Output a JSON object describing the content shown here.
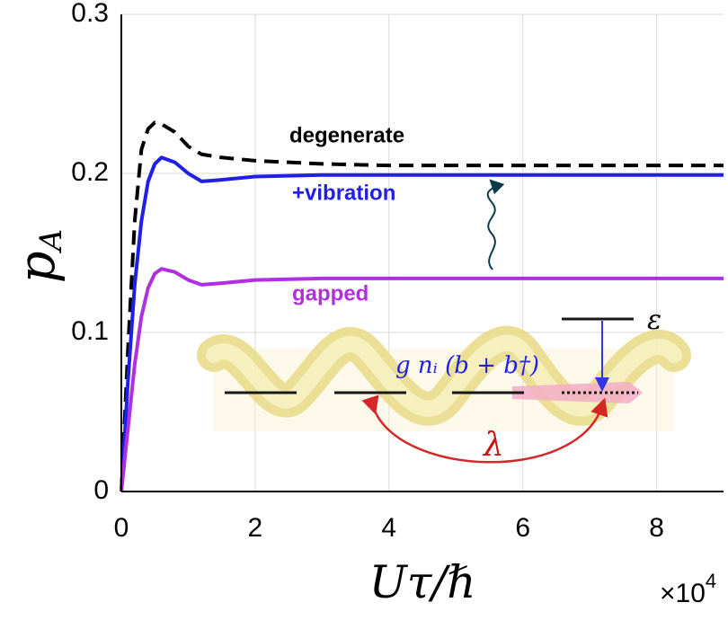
{
  "chart_data": {
    "type": "line",
    "ylabel": [
      "p",
      "A"
    ],
    "xlabel": "Uτ/ℏ",
    "x_multiplier": [
      "×10",
      "4"
    ],
    "x": [
      0,
      0.1,
      0.2,
      0.3,
      0.4,
      0.5,
      0.6,
      0.8,
      1.0,
      1.2,
      1.5,
      2,
      3,
      4,
      6,
      9
    ],
    "series": [
      {
        "name": "degenerate",
        "color": "#000000",
        "dashed": true,
        "values": [
          0,
          0.09,
          0.17,
          0.215,
          0.228,
          0.232,
          0.231,
          0.226,
          0.217,
          0.212,
          0.21,
          0.208,
          0.206,
          0.205,
          0.205,
          0.205
        ]
      },
      {
        "name": "+vibration",
        "color": "#1f1fe6",
        "dashed": false,
        "values": [
          0,
          0.07,
          0.13,
          0.17,
          0.195,
          0.206,
          0.21,
          0.207,
          0.2,
          0.195,
          0.196,
          0.198,
          0.199,
          0.199,
          0.199,
          0.199
        ]
      },
      {
        "name": "gapped",
        "color": "#b030e0",
        "dashed": false,
        "values": [
          0,
          0.04,
          0.08,
          0.11,
          0.128,
          0.137,
          0.14,
          0.138,
          0.133,
          0.13,
          0.131,
          0.133,
          0.134,
          0.134,
          0.134,
          0.134
        ]
      }
    ],
    "xlim": [
      0,
      9
    ],
    "ylim": [
      0,
      0.3
    ],
    "xticks": [
      0,
      2,
      4,
      6,
      8
    ],
    "yticks": [
      0,
      0.1,
      0.2,
      0.3
    ],
    "grid": true,
    "inset_labels": [
      "ε",
      "g nᵢ (b + b†)",
      "λ"
    ]
  }
}
